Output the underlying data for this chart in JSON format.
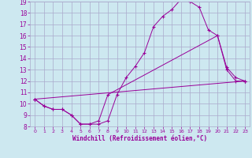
{
  "background_color": "#cde8f0",
  "grid_color": "#aaaacc",
  "line_color": "#990099",
  "xlim": [
    -0.5,
    23.5
  ],
  "ylim": [
    8,
    19
  ],
  "xticks": [
    0,
    1,
    2,
    3,
    4,
    5,
    6,
    7,
    8,
    9,
    10,
    11,
    12,
    13,
    14,
    15,
    16,
    17,
    18,
    19,
    20,
    21,
    22,
    23
  ],
  "yticks": [
    8,
    9,
    10,
    11,
    12,
    13,
    14,
    15,
    16,
    17,
    18,
    19
  ],
  "xlabel": "Windchill (Refroidissement éolien,°C)",
  "curve1_x": [
    0,
    1,
    2,
    3,
    4,
    5,
    6,
    7,
    8,
    9,
    10,
    11,
    12,
    13,
    14,
    15,
    16,
    17,
    18,
    19,
    20,
    21,
    22,
    23
  ],
  "curve1_y": [
    10.4,
    9.8,
    9.5,
    9.5,
    9.0,
    8.2,
    8.2,
    8.2,
    8.5,
    10.8,
    12.3,
    13.3,
    14.5,
    16.8,
    17.7,
    18.3,
    19.2,
    19.0,
    18.5,
    16.5,
    16.0,
    13.0,
    12.0,
    12.0
  ],
  "curve2_x": [
    0,
    1,
    2,
    3,
    4,
    5,
    6,
    7,
    8,
    20,
    21,
    22,
    23
  ],
  "curve2_y": [
    10.4,
    9.8,
    9.5,
    9.5,
    9.0,
    8.2,
    8.2,
    8.5,
    10.8,
    16.0,
    13.2,
    12.3,
    12.0
  ],
  "curve3_x": [
    0,
    23
  ],
  "curve3_y": [
    10.4,
    12.0
  ]
}
